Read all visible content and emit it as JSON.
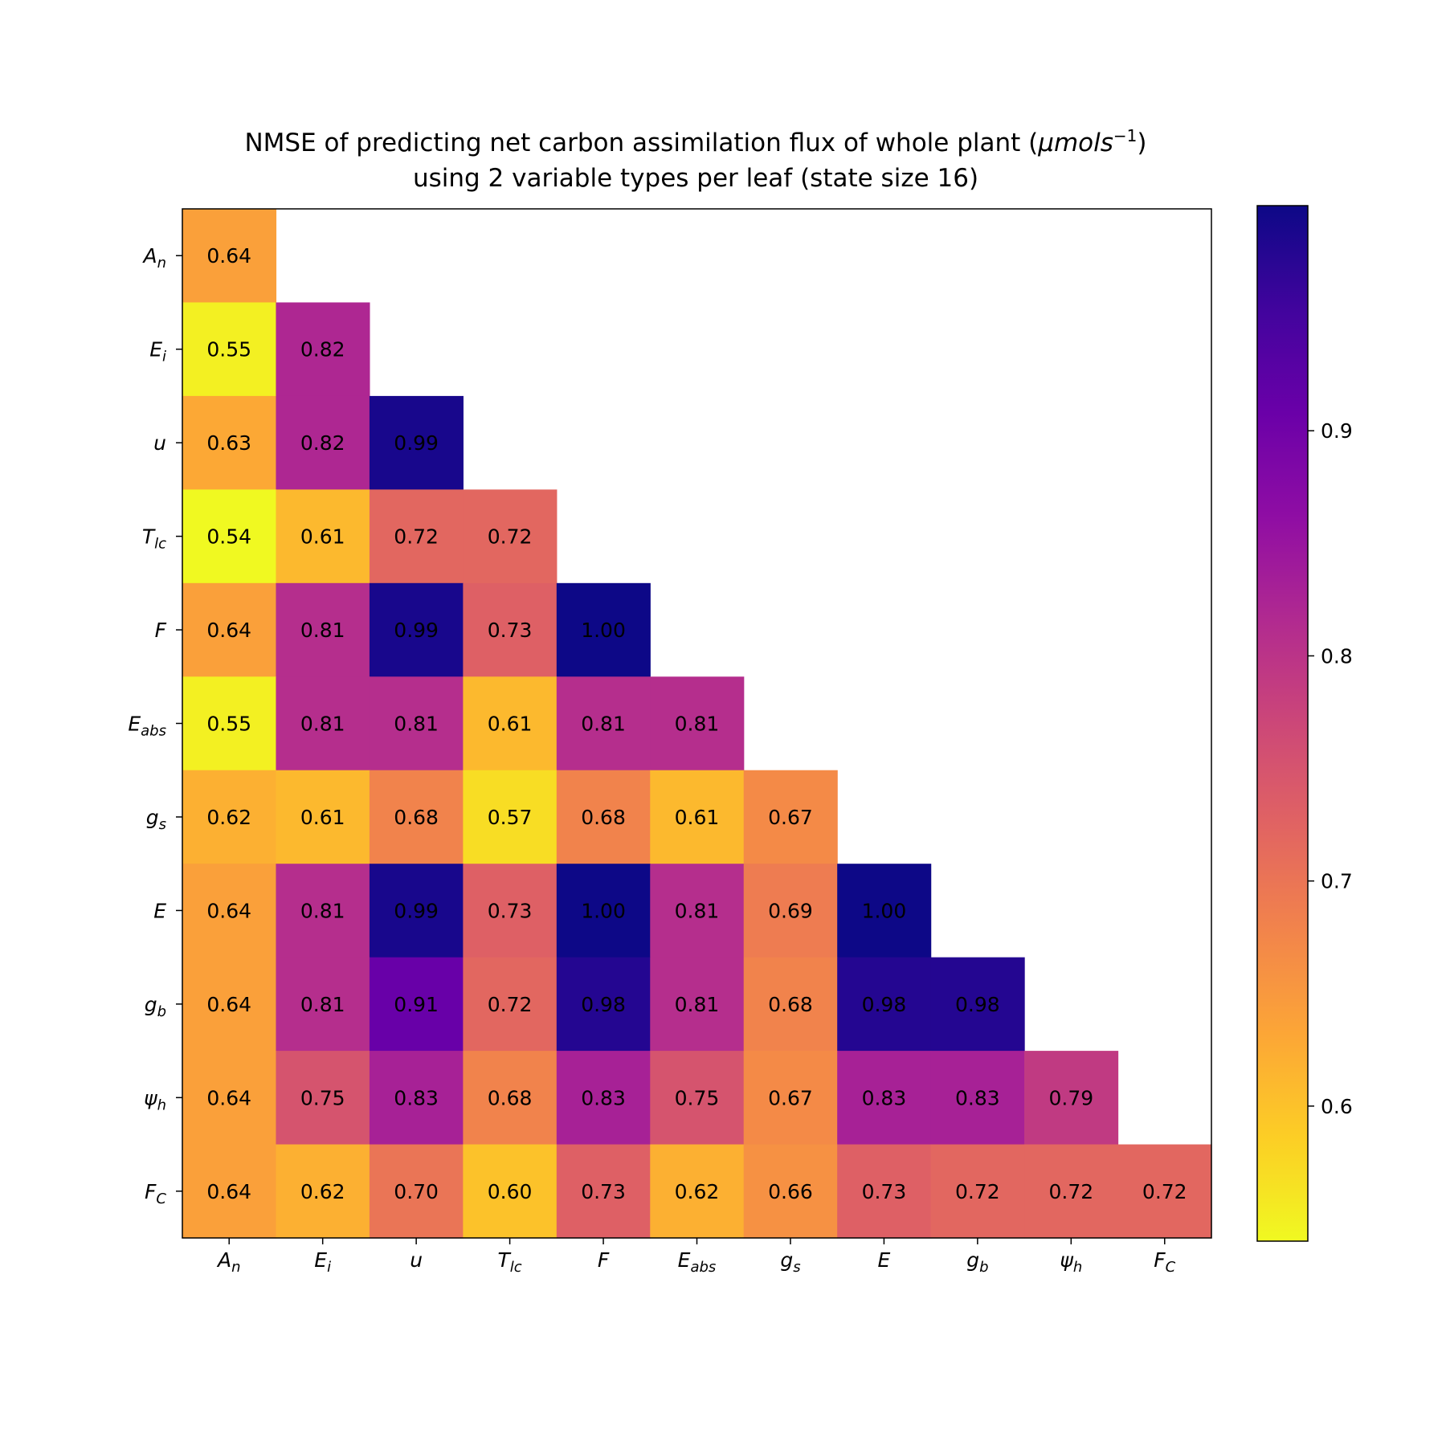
{
  "chart_data": {
    "type": "heatmap",
    "title_line1_prefix": "NMSE of predicting net carbon assimilation flux of whole plant (",
    "title_unit_base": "μmols",
    "title_unit_exp": "−1",
    "title_line1_suffix": ")",
    "title_line2": "using 2 variable types per leaf (state size 16)",
    "colormap": "plasma_r",
    "color_range": [
      0.54,
      1.0
    ],
    "categories": [
      {
        "base": "A",
        "sub": "n"
      },
      {
        "base": "E",
        "sub": "i"
      },
      {
        "base": "u",
        "sub": ""
      },
      {
        "base": "T",
        "sub": "lc"
      },
      {
        "base": "F",
        "sub": ""
      },
      {
        "base": "E",
        "sub": "abs"
      },
      {
        "base": "g",
        "sub": "s"
      },
      {
        "base": "E",
        "sub": ""
      },
      {
        "base": "g",
        "sub": "b"
      },
      {
        "base": "ψ",
        "sub": "h"
      },
      {
        "base": "F",
        "sub": "C"
      }
    ],
    "matrix": [
      [
        0.64
      ],
      [
        0.55,
        0.82
      ],
      [
        0.63,
        0.82,
        0.99
      ],
      [
        0.54,
        0.61,
        0.72,
        0.72
      ],
      [
        0.64,
        0.81,
        0.99,
        0.73,
        1.0
      ],
      [
        0.55,
        0.81,
        0.81,
        0.61,
        0.81,
        0.81
      ],
      [
        0.62,
        0.61,
        0.68,
        0.57,
        0.68,
        0.61,
        0.67
      ],
      [
        0.64,
        0.81,
        0.99,
        0.73,
        1.0,
        0.81,
        0.69,
        1.0
      ],
      [
        0.64,
        0.81,
        0.91,
        0.72,
        0.98,
        0.81,
        0.68,
        0.98,
        0.98
      ],
      [
        0.64,
        0.75,
        0.83,
        0.68,
        0.83,
        0.75,
        0.67,
        0.83,
        0.83,
        0.79
      ],
      [
        0.64,
        0.62,
        0.7,
        0.6,
        0.73,
        0.62,
        0.66,
        0.73,
        0.72,
        0.72,
        0.72
      ]
    ],
    "colorbar_ticks": [
      "0.6",
      "0.7",
      "0.8",
      "0.9"
    ],
    "grid": false
  }
}
